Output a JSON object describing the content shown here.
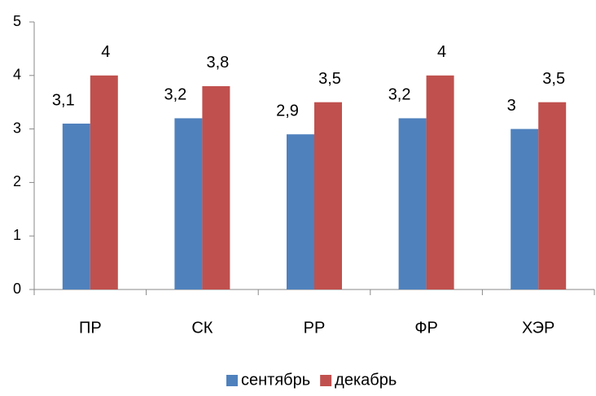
{
  "chart_data": {
    "type": "bar",
    "categories": [
      "ПР",
      "СК",
      "РР",
      "ФР",
      "ХЭР"
    ],
    "series": [
      {
        "name": "сентябрь",
        "color": "#4f81bd",
        "values": [
          3.1,
          3.2,
          2.9,
          3.2,
          3
        ],
        "value_labels": [
          "3,1",
          "3,2",
          "2,9",
          "3,2",
          "3"
        ]
      },
      {
        "name": "декабрь",
        "color": "#c0504d",
        "values": [
          4,
          3.8,
          3.5,
          4,
          3.5
        ],
        "value_labels": [
          "4",
          "3,8",
          "3,5",
          "4",
          "3,5"
        ]
      }
    ],
    "ylim": [
      0,
      5
    ],
    "yticks": [
      0,
      1,
      2,
      3,
      4,
      5
    ],
    "grid": false,
    "legend": "bottom"
  }
}
